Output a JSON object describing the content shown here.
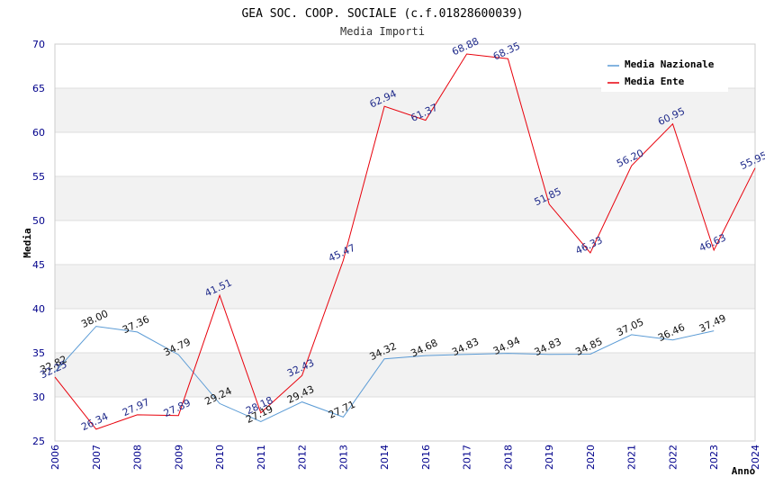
{
  "chart_data": {
    "type": "line",
    "title": "GEA SOC. COOP. SOCIALE (c.f.01828600039)",
    "subtitle": "Media Importi",
    "ylabel": "Media",
    "xlabel": "Anno",
    "ylim": [
      25,
      70
    ],
    "yticks": [
      25,
      30,
      35,
      40,
      45,
      50,
      55,
      60,
      65,
      70
    ],
    "categories": [
      "2006",
      "2007",
      "2008",
      "2009",
      "2010",
      "2011",
      "2012",
      "2013",
      "2014",
      "2016",
      "2017",
      "2018",
      "2019",
      "2020",
      "2021",
      "2022",
      "2023",
      "2024"
    ],
    "legend_position": "top-right",
    "series": [
      {
        "name": "Media Nazionale",
        "color": "#5b9bd5",
        "values": [
          32.82,
          38.0,
          37.36,
          34.79,
          29.24,
          27.19,
          29.43,
          27.71,
          34.32,
          34.68,
          34.83,
          34.94,
          34.83,
          34.85,
          37.05,
          36.46,
          37.49,
          null
        ],
        "labels": [
          "32.82",
          "38.00",
          "37.36",
          "34.79",
          "29.24",
          "27.19",
          "29.43",
          "27.71",
          "34.32",
          "34.68",
          "34.83",
          "34.94",
          "34.83",
          "34.85",
          "37.05",
          "36.46",
          "37.49",
          null
        ]
      },
      {
        "name": "Media Ente",
        "color": "#e8000b",
        "values": [
          32.25,
          26.34,
          27.97,
          27.89,
          41.51,
          28.18,
          32.43,
          45.47,
          62.94,
          61.37,
          68.88,
          68.35,
          51.85,
          46.33,
          56.2,
          60.95,
          46.63,
          55.95
        ],
        "labels": [
          "32.25",
          "26.34",
          "27.97",
          "27.89",
          "41.51",
          "28.18",
          "32.43",
          "45.47",
          "62.94",
          "61.37",
          "68.88",
          "68.35",
          "51.85",
          "46.33",
          "56.20",
          "60.95",
          "46.63",
          "55.95"
        ]
      }
    ]
  }
}
